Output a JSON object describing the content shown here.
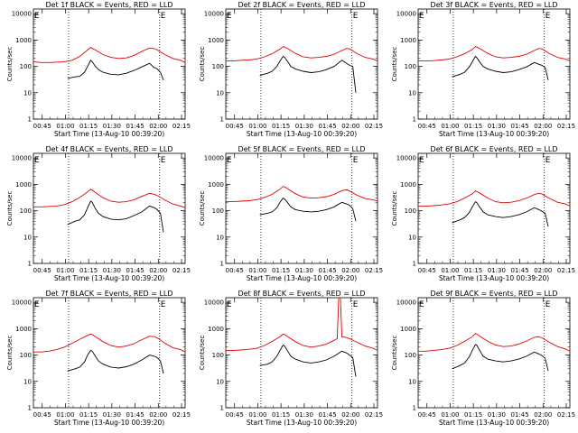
{
  "figure": {
    "xlabel": "Start Time (13-Aug-10 00:39:20)",
    "ylabel": "Counts/sec",
    "x_tick_labels": [
      "00:45",
      "01:00",
      "01:15",
      "01:30",
      "01:45",
      "02:00",
      "02:15"
    ],
    "y_tick_labels": [
      "1",
      "10",
      "100",
      "1000",
      "10000"
    ],
    "legend_marker": "E",
    "colors": {
      "events": "#000000",
      "lld": "#e00000",
      "axes": "#000000",
      "background": "#ffffff"
    }
  },
  "chart_data": [
    {
      "type": "line",
      "title": "Det 1f BLACK = Events, RED = LLD",
      "xlabel": "Start Time (13-Aug-10 00:39:20)",
      "ylabel": "Counts/sec",
      "x_range_minutes_since_start": [
        0,
        98
      ],
      "ylim": [
        1,
        15000
      ],
      "y_scale": "log",
      "vlines_minutes": [
        22.7,
        81.5
      ],
      "series": [
        {
          "name": "Events",
          "color": "#000000",
          "x": [
            22,
            27,
            30,
            33,
            35,
            37,
            38,
            40,
            42,
            45,
            50,
            55,
            60,
            65,
            70,
            75,
            78,
            80,
            82,
            84
          ],
          "values": [
            35,
            40,
            42,
            60,
            100,
            170,
            150,
            100,
            75,
            60,
            50,
            48,
            55,
            70,
            95,
            130,
            90,
            80,
            60,
            30
          ]
        },
        {
          "name": "LLD",
          "color": "#e00000",
          "x": [
            0,
            5,
            10,
            15,
            20,
            25,
            30,
            35,
            37,
            38,
            40,
            45,
            50,
            55,
            60,
            65,
            70,
            75,
            78,
            80,
            85,
            90,
            95,
            98
          ],
          "values": [
            150,
            140,
            140,
            145,
            150,
            170,
            240,
            420,
            520,
            480,
            420,
            280,
            220,
            200,
            210,
            260,
            370,
            500,
            470,
            420,
            280,
            200,
            170,
            140
          ]
        }
      ]
    },
    {
      "type": "line",
      "title": "Det 2f BLACK = Events, RED = LLD",
      "xlabel": "Start Time (13-Aug-10 00:39:20)",
      "ylabel": "Counts/sec",
      "x_range_minutes_since_start": [
        0,
        98
      ],
      "ylim": [
        1,
        15000
      ],
      "y_scale": "log",
      "vlines_minutes": [
        22.7,
        81.5
      ],
      "series": [
        {
          "name": "Events",
          "color": "#000000",
          "x": [
            22,
            27,
            30,
            33,
            35,
            37,
            38,
            40,
            42,
            45,
            50,
            55,
            60,
            65,
            70,
            75,
            78,
            80,
            82,
            84
          ],
          "values": [
            45,
            55,
            65,
            100,
            160,
            240,
            220,
            150,
            100,
            80,
            65,
            58,
            62,
            75,
            100,
            170,
            130,
            110,
            100,
            10
          ]
        },
        {
          "name": "LLD",
          "color": "#e00000",
          "x": [
            0,
            5,
            10,
            15,
            20,
            25,
            30,
            35,
            37,
            38,
            40,
            45,
            50,
            55,
            60,
            65,
            70,
            75,
            78,
            80,
            85,
            90,
            95,
            98
          ],
          "values": [
            160,
            160,
            170,
            175,
            190,
            230,
            300,
            450,
            560,
            540,
            470,
            310,
            230,
            210,
            220,
            240,
            290,
            400,
            480,
            460,
            300,
            220,
            190,
            160
          ]
        }
      ]
    },
    {
      "type": "line",
      "title": "Det 3f BLACK = Events, RED = LLD",
      "xlabel": "Start Time (13-Aug-10 00:39:20)",
      "ylabel": "Counts/sec",
      "x_range_minutes_since_start": [
        0,
        98
      ],
      "ylim": [
        1,
        15000
      ],
      "y_scale": "log",
      "vlines_minutes": [
        22.7,
        81.5
      ],
      "series": [
        {
          "name": "Events",
          "color": "#000000",
          "x": [
            22,
            27,
            30,
            33,
            35,
            37,
            38,
            40,
            42,
            45,
            50,
            55,
            60,
            65,
            70,
            75,
            78,
            80,
            82,
            84
          ],
          "values": [
            40,
            50,
            60,
            95,
            150,
            240,
            210,
            140,
            100,
            80,
            65,
            58,
            62,
            75,
            95,
            140,
            120,
            110,
            90,
            30
          ]
        },
        {
          "name": "LLD",
          "color": "#e00000",
          "x": [
            0,
            5,
            10,
            15,
            20,
            25,
            30,
            35,
            37,
            38,
            40,
            45,
            50,
            55,
            60,
            65,
            70,
            75,
            78,
            80,
            85,
            90,
            95,
            98
          ],
          "values": [
            160,
            160,
            165,
            175,
            190,
            230,
            300,
            440,
            560,
            540,
            470,
            310,
            230,
            210,
            220,
            240,
            290,
            400,
            480,
            460,
            300,
            220,
            190,
            160
          ]
        }
      ]
    },
    {
      "type": "line",
      "title": "Det 4f BLACK = Events, RED = LLD",
      "xlabel": "Start Time (13-Aug-10 00:39:20)",
      "ylabel": "Counts/sec",
      "x_range_minutes_since_start": [
        0,
        98
      ],
      "ylim": [
        1,
        15000
      ],
      "y_scale": "log",
      "vlines_minutes": [
        22.7,
        81.5
      ],
      "series": [
        {
          "name": "Events",
          "color": "#000000",
          "x": [
            22,
            27,
            30,
            33,
            35,
            37,
            38,
            40,
            42,
            45,
            50,
            55,
            60,
            65,
            70,
            75,
            78,
            80,
            82,
            84
          ],
          "values": [
            30,
            40,
            45,
            70,
            130,
            230,
            210,
            120,
            80,
            60,
            48,
            45,
            50,
            65,
            90,
            150,
            130,
            110,
            80,
            15
          ]
        },
        {
          "name": "LLD",
          "color": "#e00000",
          "x": [
            0,
            5,
            10,
            15,
            20,
            25,
            30,
            35,
            37,
            38,
            40,
            45,
            50,
            55,
            60,
            65,
            70,
            75,
            78,
            80,
            85,
            90,
            95,
            98
          ],
          "values": [
            140,
            140,
            145,
            150,
            170,
            220,
            320,
            520,
            650,
            600,
            490,
            310,
            230,
            210,
            220,
            260,
            350,
            460,
            420,
            380,
            250,
            180,
            150,
            130
          ]
        }
      ]
    },
    {
      "type": "line",
      "title": "Det 5f BLACK = Events, RED = LLD",
      "xlabel": "Start Time (13-Aug-10 00:39:20)",
      "ylabel": "Counts/sec",
      "x_range_minutes_since_start": [
        0,
        98
      ],
      "ylim": [
        1,
        15000
      ],
      "y_scale": "log",
      "vlines_minutes": [
        22.7,
        81.5
      ],
      "series": [
        {
          "name": "Events",
          "color": "#000000",
          "x": [
            22,
            27,
            30,
            33,
            35,
            37,
            38,
            40,
            42,
            45,
            50,
            55,
            60,
            65,
            70,
            75,
            78,
            80,
            82,
            84
          ],
          "values": [
            70,
            80,
            90,
            130,
            210,
            300,
            280,
            200,
            140,
            110,
            95,
            90,
            95,
            110,
            140,
            210,
            180,
            160,
            120,
            40
          ]
        },
        {
          "name": "LLD",
          "color": "#e00000",
          "x": [
            0,
            5,
            10,
            15,
            20,
            25,
            30,
            35,
            37,
            38,
            40,
            45,
            50,
            55,
            60,
            65,
            70,
            75,
            78,
            80,
            85,
            90,
            95,
            98
          ],
          "values": [
            220,
            220,
            230,
            240,
            260,
            320,
            420,
            650,
            840,
            800,
            680,
            440,
            330,
            300,
            310,
            340,
            420,
            580,
            620,
            560,
            380,
            290,
            260,
            230
          ]
        }
      ]
    },
    {
      "type": "line",
      "title": "Det 6f BLACK = Events, RED = LLD",
      "xlabel": "Start Time (13-Aug-10 00:39:20)",
      "ylabel": "Counts/sec",
      "x_range_minutes_since_start": [
        0,
        98
      ],
      "ylim": [
        1,
        15000
      ],
      "y_scale": "log",
      "vlines_minutes": [
        22.7,
        81.5
      ],
      "series": [
        {
          "name": "Events",
          "color": "#000000",
          "x": [
            22,
            27,
            30,
            33,
            35,
            37,
            38,
            40,
            42,
            45,
            50,
            55,
            60,
            65,
            70,
            75,
            78,
            80,
            82,
            84
          ],
          "values": [
            35,
            45,
            55,
            85,
            140,
            220,
            200,
            130,
            90,
            70,
            60,
            55,
            60,
            70,
            90,
            130,
            110,
            95,
            80,
            25
          ]
        },
        {
          "name": "LLD",
          "color": "#e00000",
          "x": [
            0,
            5,
            10,
            15,
            20,
            25,
            30,
            35,
            37,
            38,
            40,
            45,
            50,
            55,
            60,
            65,
            70,
            75,
            78,
            80,
            85,
            90,
            95,
            98
          ],
          "values": [
            150,
            150,
            155,
            165,
            180,
            220,
            300,
            440,
            560,
            530,
            460,
            300,
            220,
            200,
            210,
            240,
            300,
            410,
            460,
            430,
            290,
            210,
            180,
            150
          ]
        }
      ]
    },
    {
      "type": "line",
      "title": "Det 7f BLACK = Events, RED = LLD",
      "xlabel": "Start Time (13-Aug-10 00:39:20)",
      "ylabel": "Counts/sec",
      "x_range_minutes_since_start": [
        0,
        98
      ],
      "ylim": [
        1,
        15000
      ],
      "y_scale": "log",
      "vlines_minutes": [
        22.7,
        81.5
      ],
      "series": [
        {
          "name": "Events",
          "color": "#000000",
          "x": [
            22,
            27,
            30,
            33,
            35,
            37,
            38,
            40,
            42,
            45,
            50,
            55,
            60,
            65,
            70,
            75,
            78,
            80,
            82,
            84
          ],
          "values": [
            25,
            30,
            35,
            55,
            100,
            150,
            140,
            90,
            60,
            45,
            35,
            32,
            36,
            45,
            65,
            100,
            90,
            80,
            60,
            20
          ]
        },
        {
          "name": "LLD",
          "color": "#e00000",
          "x": [
            0,
            5,
            10,
            15,
            20,
            25,
            30,
            35,
            37,
            38,
            40,
            45,
            50,
            55,
            60,
            65,
            70,
            75,
            78,
            80,
            85,
            90,
            95,
            98
          ],
          "values": [
            130,
            130,
            140,
            160,
            200,
            280,
            400,
            560,
            620,
            600,
            500,
            320,
            230,
            200,
            220,
            270,
            380,
            520,
            500,
            450,
            280,
            190,
            160,
            130
          ]
        }
      ]
    },
    {
      "type": "line",
      "title": "Det 8f BLACK = Events, RED = LLD",
      "xlabel": "Start Time (13-Aug-10 00:39:20)",
      "ylabel": "Counts/sec",
      "x_range_minutes_since_start": [
        0,
        98
      ],
      "ylim": [
        1,
        15000
      ],
      "y_scale": "log",
      "vlines_minutes": [
        22.7,
        81.5
      ],
      "series": [
        {
          "name": "Events",
          "color": "#000000",
          "x": [
            22,
            27,
            30,
            33,
            35,
            37,
            38,
            40,
            42,
            45,
            50,
            55,
            60,
            65,
            70,
            75,
            78,
            80,
            82,
            84
          ],
          "values": [
            40,
            45,
            55,
            90,
            150,
            240,
            220,
            140,
            90,
            70,
            55,
            50,
            55,
            65,
            90,
            140,
            120,
            100,
            80,
            15
          ]
        },
        {
          "name": "LLD",
          "color": "#e00000",
          "x": [
            0,
            5,
            10,
            15,
            20,
            25,
            30,
            35,
            37,
            38,
            40,
            45,
            50,
            55,
            60,
            65,
            70,
            72,
            73,
            74,
            75,
            78,
            80,
            85,
            90,
            95,
            98
          ],
          "values": [
            150,
            150,
            155,
            165,
            180,
            230,
            330,
            500,
            620,
            600,
            500,
            320,
            230,
            200,
            220,
            260,
            360,
            420,
            15000,
            15000,
            500,
            460,
            420,
            300,
            220,
            180,
            150
          ]
        }
      ]
    },
    {
      "type": "line",
      "title": "Det 9f BLACK = Events, RED = LLD",
      "xlabel": "Start Time (13-Aug-10 00:39:20)",
      "ylabel": "Counts/sec",
      "x_range_minutes_since_start": [
        0,
        98
      ],
      "ylim": [
        1,
        15000
      ],
      "y_scale": "log",
      "vlines_minutes": [
        22.7,
        81.5
      ],
      "series": [
        {
          "name": "Events",
          "color": "#000000",
          "x": [
            22,
            27,
            30,
            33,
            35,
            37,
            38,
            40,
            42,
            45,
            50,
            55,
            60,
            65,
            70,
            75,
            78,
            80,
            82,
            84
          ],
          "values": [
            30,
            40,
            50,
            85,
            150,
            250,
            230,
            140,
            90,
            70,
            60,
            55,
            60,
            70,
            90,
            130,
            110,
            95,
            75,
            25
          ]
        },
        {
          "name": "LLD",
          "color": "#e00000",
          "x": [
            0,
            5,
            10,
            15,
            20,
            25,
            30,
            35,
            37,
            38,
            40,
            45,
            50,
            55,
            60,
            65,
            70,
            75,
            78,
            80,
            85,
            90,
            95,
            98
          ],
          "values": [
            140,
            140,
            150,
            160,
            180,
            230,
            330,
            500,
            650,
            620,
            510,
            330,
            240,
            210,
            220,
            260,
            340,
            470,
            500,
            450,
            300,
            210,
            170,
            140
          ]
        }
      ]
    }
  ]
}
